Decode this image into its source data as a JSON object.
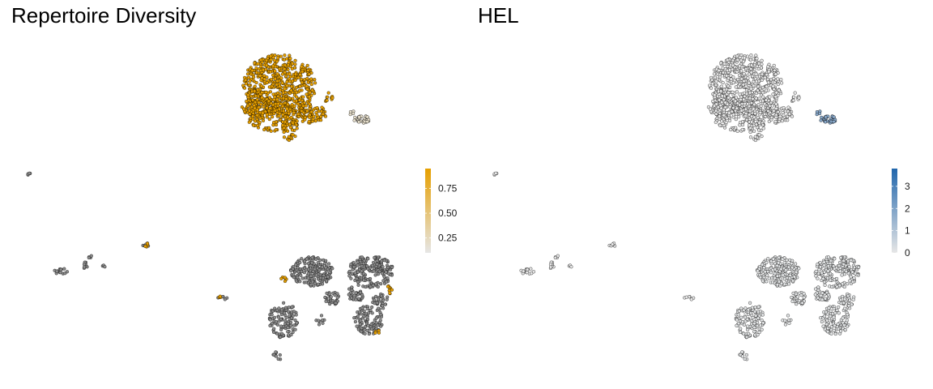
{
  "chart_data": [
    {
      "type": "scatter",
      "title": "Repertoire Diversity",
      "xlabel": "",
      "ylabel": "",
      "axes_visible": false,
      "legend": {
        "placement": "right",
        "kind": "colorbar",
        "range": [
          0.1,
          0.95
        ],
        "ticks": [
          "0.25",
          "0.50",
          "0.75"
        ],
        "tick_values": [
          0.25,
          0.5,
          0.75
        ],
        "low_color": "#e6e6e6",
        "high_color": "#e69f00"
      },
      "na_color": "#8c8c8c",
      "clusters": [
        {
          "region": "top-large",
          "value": 0.95
        },
        {
          "region": "top-small-right",
          "value": 0.2
        },
        {
          "region": "bottom-left-islands",
          "value": null
        },
        {
          "region": "bottom-right-large",
          "value": null
        }
      ]
    },
    {
      "type": "scatter",
      "title": "HEL",
      "xlabel": "",
      "ylabel": "",
      "axes_visible": false,
      "legend": {
        "placement": "right",
        "kind": "colorbar",
        "range": [
          0,
          3.8
        ],
        "ticks": [
          "0",
          "1",
          "2",
          "3"
        ],
        "tick_values": [
          0,
          1,
          2,
          3
        ],
        "low_color": "#e6e6e6",
        "high_color": "#2166ac"
      },
      "clusters": [
        {
          "region": "top-large",
          "value": 0.0
        },
        {
          "region": "top-small-right",
          "value": 1.8
        },
        {
          "region": "bottom-left-islands",
          "value": 0.0
        },
        {
          "region": "bottom-right-large",
          "value": 0.1
        }
      ]
    }
  ]
}
